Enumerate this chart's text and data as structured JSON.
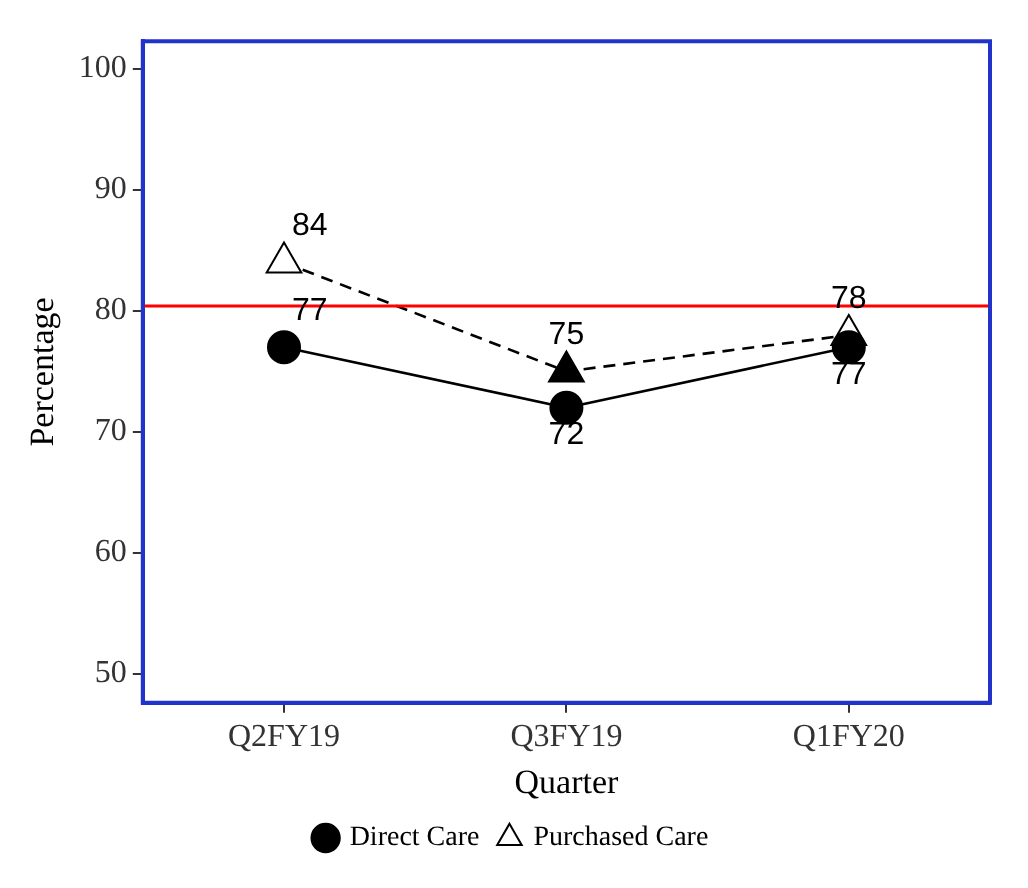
{
  "chart_data": {
    "type": "line",
    "xlabel": "Quarter",
    "ylabel": "Percentage",
    "categories": [
      "Q2FY19",
      "Q3FY19",
      "Q1FY20"
    ],
    "series": [
      {
        "name": "Direct Care",
        "color": "#000000",
        "marker": "circle",
        "line_style": "solid",
        "values": [
          77,
          72,
          77
        ]
      },
      {
        "name": "Purchased Care",
        "color": "#000000",
        "marker": "triangle",
        "line_style": "dashed",
        "colors": [
          "#ffffff",
          "#000000",
          "#ffffff"
        ],
        "values": [
          84,
          75,
          78
        ]
      }
    ],
    "ylim": [
      47.6,
      102.3
    ],
    "yticks": [
      50,
      60,
      70,
      80,
      90,
      100
    ],
    "ref_lines": [
      {
        "axis": "y",
        "value": 80.4,
        "color": "#ff0000"
      }
    ],
    "data_labels": true,
    "grid": false,
    "legend": "bottom"
  }
}
